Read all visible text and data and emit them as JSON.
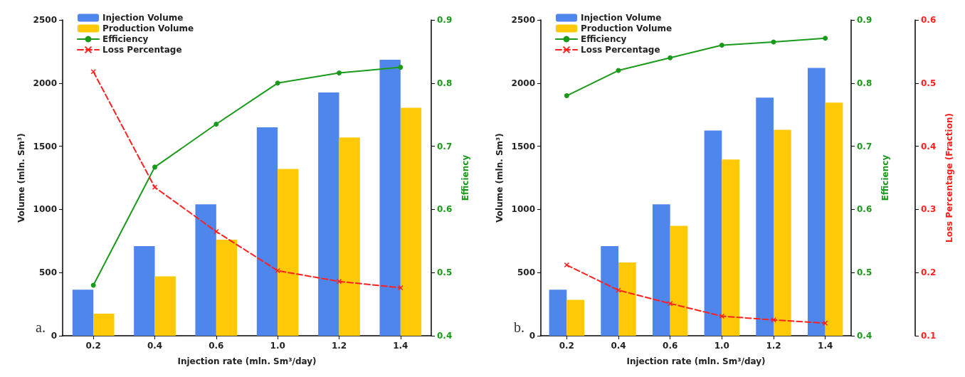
{
  "chart_data": [
    {
      "type": "bar",
      "xlabel": "Injection rate (mln. Sm³/day)",
      "ylabel": "Volume (mln. Sm³)",
      "y2label": "Efficiency",
      "annotations": [
        "a."
      ],
      "categories": [
        "0.2",
        "0.4",
        "0.6",
        "1.0",
        "1.2",
        "1.4"
      ],
      "series": [
        {
          "name": "Injection Volume",
          "color": "#4f86ec",
          "values": [
            365,
            710,
            1040,
            1650,
            1925,
            2185
          ]
        },
        {
          "name": "Production Volume",
          "color": "#ffc907",
          "values": [
            175,
            470,
            760,
            1320,
            1570,
            1805
          ]
        },
        {
          "name": "Efficiency",
          "type": "line",
          "axis": "y2",
          "color": "#1a9a1a",
          "marker": "circle",
          "line_style": "solid",
          "values": [
            0.48,
            0.667,
            0.735,
            0.8,
            0.816,
            0.825
          ]
        },
        {
          "name": "Loss Percentage",
          "type": "line",
          "axis": "y2",
          "color": "#ff2020",
          "marker": "cross",
          "line_style": "dashed",
          "values": [
            0.818,
            0.635,
            0.565,
            0.503,
            0.486,
            0.476
          ]
        }
      ],
      "ylim": [
        0,
        2500
      ],
      "yticks": [
        0,
        500,
        1000,
        1500,
        2000,
        2500
      ],
      "y2lim": [
        0.4,
        0.9
      ],
      "y2ticks": [
        0.4,
        0.5,
        0.6,
        0.7,
        0.8,
        0.9
      ],
      "legend": "top left",
      "grid": false
    },
    {
      "type": "bar",
      "xlabel": "Injection rate (mln. Sm³/day)",
      "ylabel": "Volume (mln. Sm³)",
      "y2label": "Efficiency",
      "y3label": "Loss Percentage (Fraction)",
      "annotations": [
        "b."
      ],
      "categories": [
        "0.2",
        "0.4",
        "0.6",
        "1.0",
        "1.2",
        "1.4"
      ],
      "series": [
        {
          "name": "Injection Volume",
          "color": "#4f86ec",
          "values": [
            365,
            710,
            1040,
            1625,
            1885,
            2120
          ]
        },
        {
          "name": "Production Volume",
          "color": "#ffc907",
          "values": [
            285,
            580,
            870,
            1395,
            1630,
            1845
          ]
        },
        {
          "name": "Efficiency",
          "type": "line",
          "axis": "y2",
          "color": "#1a9a1a",
          "marker": "circle",
          "line_style": "solid",
          "values": [
            0.78,
            0.82,
            0.84,
            0.86,
            0.865,
            0.871
          ]
        },
        {
          "name": "Loss Percentage",
          "type": "line",
          "axis": "y3",
          "color": "#ff2020",
          "marker": "cross",
          "line_style": "dashed",
          "values": [
            0.212,
            0.172,
            0.151,
            0.131,
            0.125,
            0.12
          ]
        }
      ],
      "ylim": [
        0,
        2500
      ],
      "yticks": [
        0,
        500,
        1000,
        1500,
        2000,
        2500
      ],
      "y2lim": [
        0.4,
        0.9
      ],
      "y2ticks": [
        0.4,
        0.5,
        0.6,
        0.7,
        0.8,
        0.9
      ],
      "y3lim": [
        0.1,
        0.6
      ],
      "y3ticks": [
        0.1,
        0.2,
        0.3,
        0.4,
        0.5,
        0.6
      ],
      "legend": "top left",
      "grid": false
    }
  ]
}
